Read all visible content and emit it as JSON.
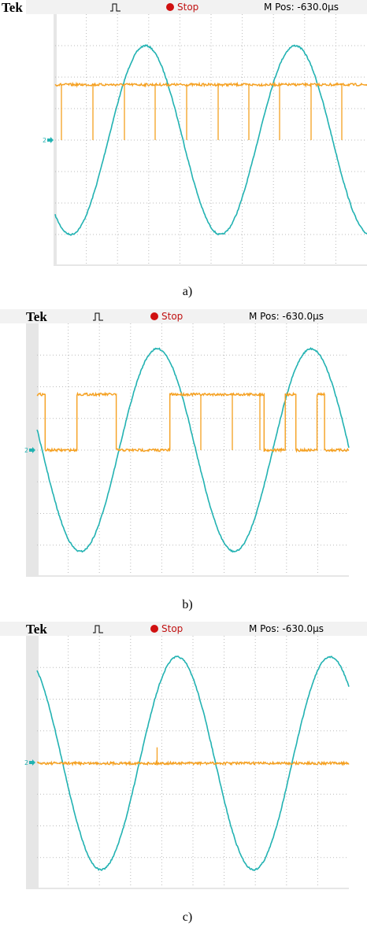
{
  "panels": [
    {
      "header": {
        "brand": "Tek",
        "status": "Stop",
        "position": "M Pos: -630.0µs"
      },
      "channel_marker": "2",
      "caption": "a)"
    },
    {
      "header": {
        "brand": "Tek",
        "status": "Stop",
        "position": "M Pos: -630.0µs"
      },
      "channel_marker": "2",
      "caption": "b)"
    },
    {
      "header": {
        "brand": "Tek",
        "status": "Stop",
        "position": "M Pos: -630.0µs"
      },
      "channel_marker": "2",
      "caption": "c)"
    }
  ]
}
